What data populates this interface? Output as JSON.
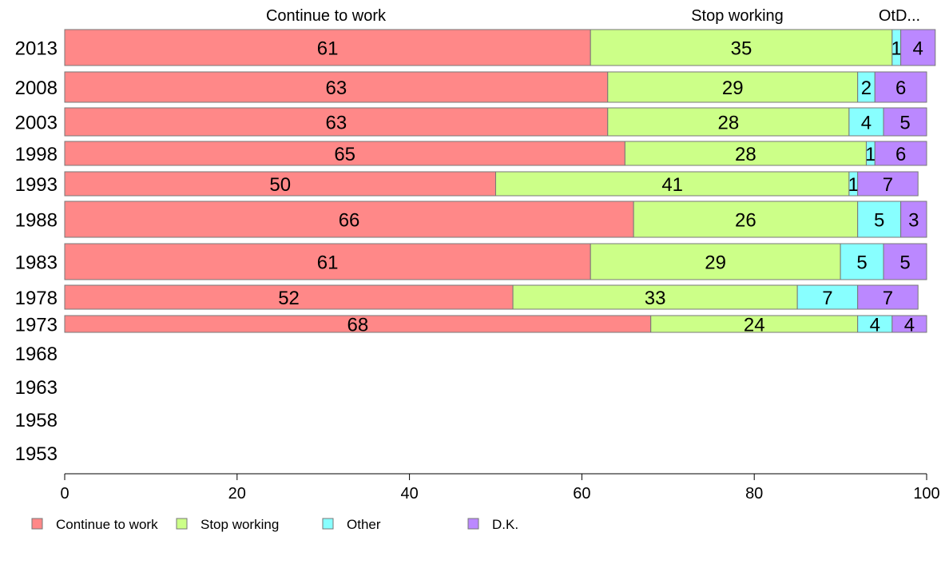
{
  "chart_data": {
    "type": "bar",
    "orientation": "horizontal",
    "stacked": true,
    "top_labels": [
      "Continue to work",
      "Stop working",
      "OtD..."
    ],
    "categories": [
      "2013",
      "2008",
      "2003",
      "1998",
      "1993",
      "1988",
      "1983",
      "1978",
      "1973",
      "1968",
      "1963",
      "1958",
      "1953"
    ],
    "series": [
      {
        "name": "Continue to work",
        "color": "#ff8888",
        "values": [
          61,
          63,
          63,
          65,
          50,
          66,
          61,
          52,
          68,
          null,
          null,
          null,
          null
        ]
      },
      {
        "name": "Stop working",
        "color": "#ccff88",
        "values": [
          35,
          29,
          28,
          28,
          41,
          26,
          29,
          33,
          24,
          null,
          null,
          null,
          null
        ]
      },
      {
        "name": "Other",
        "color": "#88ffff",
        "values": [
          1,
          2,
          4,
          1,
          1,
          5,
          5,
          7,
          4,
          null,
          null,
          null,
          null
        ]
      },
      {
        "name": "D.K.",
        "color": "#bb88ff",
        "values": [
          4,
          6,
          5,
          6,
          7,
          3,
          5,
          7,
          4,
          null,
          null,
          null,
          null
        ]
      }
    ],
    "xlim": [
      0,
      100
    ],
    "xticks": [
      0,
      20,
      40,
      60,
      80,
      100
    ],
    "legend_position": "bottom-left",
    "grid": false
  }
}
